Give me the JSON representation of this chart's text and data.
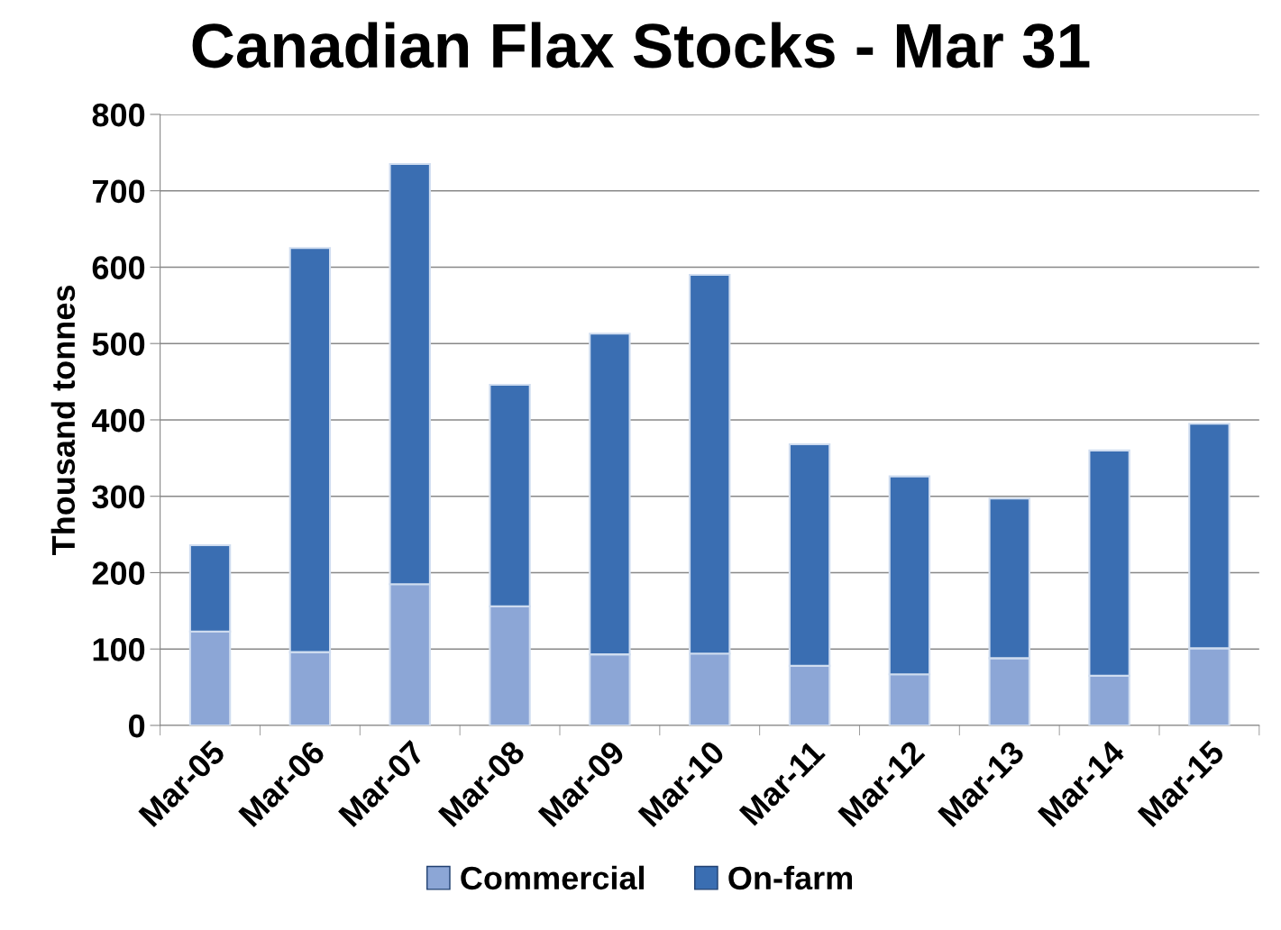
{
  "chart_data": {
    "type": "bar",
    "title": "Canadian Flax Stocks - Mar 31",
    "ylabel": "Thousand tonnes",
    "categories": [
      "Mar-05",
      "Mar-06",
      "Mar-07",
      "Mar-08",
      "Mar-09",
      "Mar-10",
      "Mar-11",
      "Mar-12",
      "Mar-13",
      "Mar-14",
      "Mar-15"
    ],
    "series": [
      {
        "name": "Commercial",
        "color": "#8ca6d6",
        "values": [
          123,
          96,
          185,
          156,
          93,
          94,
          78,
          67,
          88,
          65,
          101
        ]
      },
      {
        "name": "On-farm",
        "color": "#3a6eb2",
        "values": [
          113,
          529,
          550,
          290,
          420,
          496,
          290,
          259,
          209,
          295,
          294
        ]
      }
    ],
    "stacked": true,
    "ylim": [
      0,
      800
    ],
    "yticks": [
      0,
      100,
      200,
      300,
      400,
      500,
      600,
      700,
      800
    ],
    "grid": "y",
    "legend": "bottom"
  }
}
